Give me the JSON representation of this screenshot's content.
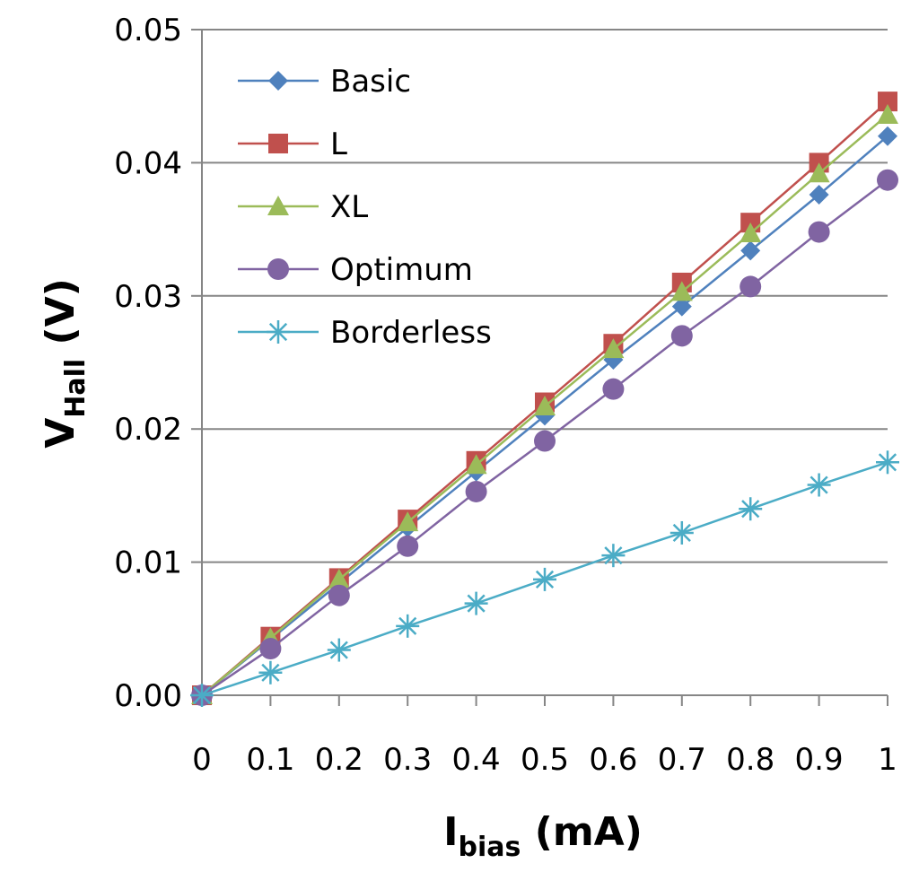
{
  "chart_data": {
    "type": "line",
    "title": "",
    "xlabel": {
      "main": "I",
      "sub": "bias",
      "suffix": " (mA)"
    },
    "ylabel": {
      "main": "V",
      "sub": "Hall",
      "suffix": " (V)"
    },
    "xlim": [
      0,
      1
    ],
    "ylim": [
      0,
      0.05
    ],
    "x": [
      0,
      0.1,
      0.2,
      0.3,
      0.4,
      0.5,
      0.6,
      0.7,
      0.8,
      0.9,
      1
    ],
    "x_tick_labels": [
      "0",
      "0.1",
      "0.2",
      "0.3",
      "0.4",
      "0.5",
      "0.6",
      "0.7",
      "0.8",
      "0.9",
      "1"
    ],
    "y_ticks": [
      0,
      0.01,
      0.02,
      0.03,
      0.04,
      0.05
    ],
    "y_tick_labels": [
      "0.00",
      "0.01",
      "0.02",
      "0.03",
      "0.04",
      "0.05"
    ],
    "grid": "horizontal",
    "legend_position": "top-left",
    "series": [
      {
        "name": "Basic",
        "color": "#4f81bd",
        "marker": "diamond",
        "values": [
          0,
          0.0042,
          0.0084,
          0.0126,
          0.0168,
          0.021,
          0.0252,
          0.0292,
          0.0334,
          0.0376,
          0.042
        ]
      },
      {
        "name": "L",
        "color": "#c0504d",
        "marker": "square",
        "values": [
          0,
          0.0044,
          0.0088,
          0.0132,
          0.0176,
          0.022,
          0.0264,
          0.031,
          0.0355,
          0.04,
          0.0446
        ]
      },
      {
        "name": "XL",
        "color": "#9bbb59",
        "marker": "triangle",
        "values": [
          0,
          0.0043,
          0.0087,
          0.013,
          0.0173,
          0.0217,
          0.026,
          0.0303,
          0.0347,
          0.0392,
          0.0436
        ]
      },
      {
        "name": "Optimum",
        "color": "#8064a2",
        "marker": "circle",
        "values": [
          0,
          0.0035,
          0.0075,
          0.0112,
          0.0153,
          0.0191,
          0.023,
          0.027,
          0.0307,
          0.0348,
          0.0387
        ]
      },
      {
        "name": "Borderless",
        "color": "#4bacc6",
        "marker": "star",
        "values": [
          0,
          0.0017,
          0.0034,
          0.0052,
          0.0069,
          0.0087,
          0.0105,
          0.0122,
          0.014,
          0.0158,
          0.0175
        ]
      }
    ]
  }
}
